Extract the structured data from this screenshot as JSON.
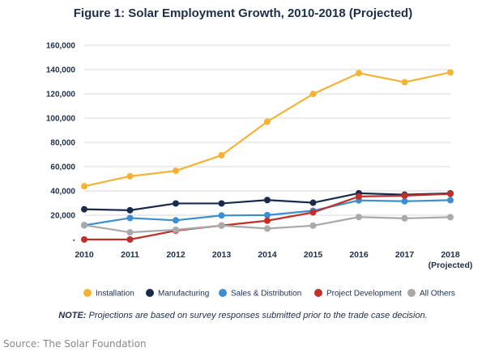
{
  "chart_data": {
    "type": "line",
    "title": "Figure 1: Solar Employment Growth, 2010-2018 (Projected)",
    "x": [
      "2010",
      "2011",
      "2012",
      "2013",
      "2014",
      "2015",
      "2016",
      "2017",
      "2018"
    ],
    "x_sublabels": [
      "",
      "",
      "",
      "",
      "",
      "",
      "",
      "",
      "(Projected)"
    ],
    "ylim": [
      0,
      160000
    ],
    "y_ticks": [
      0,
      20000,
      40000,
      60000,
      80000,
      100000,
      120000,
      140000,
      160000
    ],
    "y_tick_labels": [
      "-",
      "20,000",
      "40,000",
      "60,000",
      "80,000",
      "100,000",
      "120,000",
      "140,000",
      "160,000"
    ],
    "grid": true,
    "legend_position": "bottom",
    "series": [
      {
        "name": "Installation",
        "color": "#f5b335",
        "values": [
          43900,
          52100,
          56600,
          69400,
          97100,
          119900,
          137100,
          129600,
          137700
        ]
      },
      {
        "name": "Manufacturing",
        "color": "#1a2a4a",
        "values": [
          24900,
          24100,
          29700,
          29700,
          32500,
          30300,
          38100,
          36900,
          38000
        ]
      },
      {
        "name": "Sales & Distribution",
        "color": "#3b8fd0",
        "values": [
          11700,
          17700,
          15800,
          19800,
          20100,
          23700,
          32200,
          31500,
          32400
        ]
      },
      {
        "name": "Project Development",
        "color": "#c0302b",
        "values": [
          0,
          0,
          7300,
          11500,
          15500,
          22300,
          35400,
          36100,
          37600
        ]
      },
      {
        "name": "All Others",
        "color": "#a9a9a9",
        "values": [
          11900,
          5900,
          8000,
          11500,
          9000,
          11400,
          18500,
          17400,
          18400
        ]
      }
    ]
  },
  "note": {
    "prefix": "NOTE:",
    "text": " Projections are based on survey responses submitted prior to the trade case decision."
  },
  "source": "Source: The Solar Foundation"
}
